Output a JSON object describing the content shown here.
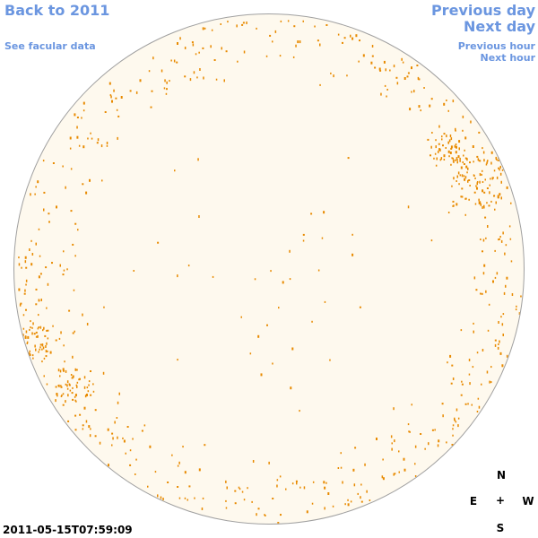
{
  "nav": {
    "back_to_year": "Back to 2011",
    "see_facular": "See facular data",
    "previous_day": "Previous day",
    "next_day": "Next day",
    "previous_hour": "Previous hour",
    "next_hour": "Next hour"
  },
  "compass": {
    "north": "N",
    "east": "E",
    "center": "+",
    "west": "W",
    "south": "S"
  },
  "timestamp": "2011-05-15T07:59:09",
  "colors": {
    "link": "#6b96e0",
    "disk": "#fef9ee",
    "disk_border": "#a0a0a0",
    "facula": "#e88a00"
  }
}
